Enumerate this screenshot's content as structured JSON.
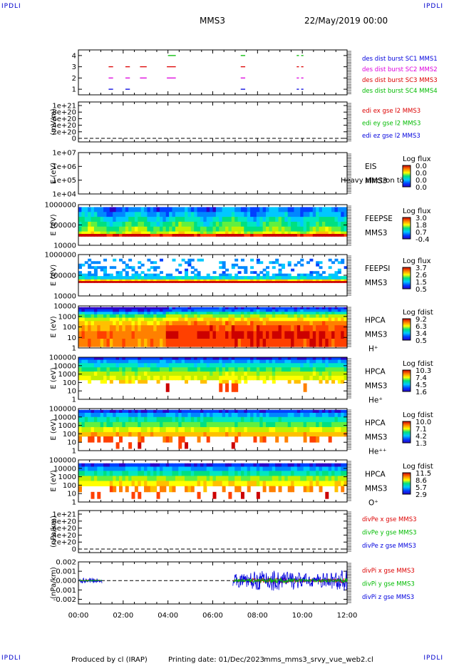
{
  "corner_label": "IPDLI",
  "header": {
    "spacecraft": "MMS3",
    "datetime": "22/May/2019 00:00"
  },
  "footer": {
    "produced_by": "Produced by cl (IRAP)",
    "printing_date": "Printing date: 01/Dec/2023",
    "filename": "mms_mms3_srvy_vue_web2.cl"
  },
  "colors": {
    "blue": "#0000dd",
    "magenta": "#dd00dd",
    "red": "#dd0000",
    "green": "#00bb00",
    "colorbar_stops": [
      "#2a00c8",
      "#0040ff",
      "#00c8ff",
      "#00e080",
      "#ffff00",
      "#ff8000",
      "#cc0000"
    ]
  },
  "chart_data": [
    {
      "type": "scatter",
      "panel": "burst",
      "ylim": [
        0.5,
        4.5
      ],
      "yticks": [
        "1",
        "2",
        "3",
        "4"
      ],
      "legend": [
        {
          "label": "des dist burst SC1 MMS1",
          "color": "#0000dd"
        },
        {
          "label": "des dist burst SC2 MMS2",
          "color": "#dd00dd"
        },
        {
          "label": "des dist burst SC3 MMS3",
          "color": "#dd0000"
        },
        {
          "label": "des dist burst SC4 MMS4",
          "color": "#00bb00"
        }
      ],
      "series": [
        {
          "level": 1,
          "color": "#0000dd",
          "segments": [
            [
              1.35,
              1.55
            ],
            [
              2.1,
              2.3
            ],
            [
              7.25,
              7.45
            ],
            [
              9.75,
              9.85
            ],
            [
              9.95,
              10.05
            ]
          ]
        },
        {
          "level": 2,
          "color": "#dd00dd",
          "segments": [
            [
              1.35,
              1.55
            ],
            [
              2.1,
              2.3
            ],
            [
              2.75,
              3.05
            ],
            [
              3.95,
              4.35
            ],
            [
              7.25,
              7.45
            ],
            [
              9.75,
              9.85
            ],
            [
              9.95,
              10.05
            ]
          ]
        },
        {
          "level": 3,
          "color": "#dd0000",
          "segments": [
            [
              1.35,
              1.55
            ],
            [
              2.1,
              2.3
            ],
            [
              2.75,
              3.05
            ],
            [
              3.95,
              4.35
            ],
            [
              7.25,
              7.45
            ],
            [
              9.75,
              9.85
            ],
            [
              9.95,
              10.05
            ]
          ]
        },
        {
          "level": 4,
          "color": "#00bb00",
          "segments": [
            [
              4.0,
              4.35
            ],
            [
              7.25,
              7.45
            ],
            [
              9.75,
              9.85
            ],
            [
              9.95,
              10.05
            ]
          ]
        }
      ]
    },
    {
      "type": "line",
      "panel": "edi",
      "ylabel": "(mV/m)",
      "yticks": [
        "1e+21",
        "8e+20",
        "6e+20",
        "4e+20",
        "2e+20",
        "0"
      ],
      "legend": [
        {
          "label": "edi ex gse l2 MMS3",
          "color": "#dd0000"
        },
        {
          "label": "edi ey gse l2 MMS3",
          "color": "#00bb00"
        },
        {
          "label": "edi ez gse l2 MMS3",
          "color": "#0000dd"
        }
      ],
      "zero_line": true
    },
    {
      "type": "heatmap",
      "panel": "eis",
      "ylabel": "E (eV)",
      "yticks": [
        "1e+07",
        "1e+06",
        "1e+05",
        "1e+04"
      ],
      "instrument": "EIS",
      "spacecraft": "MMS3",
      "overlay_text": "Heavy electron tö",
      "colorbar": {
        "title": "Log flux",
        "ticks": [
          "0.0",
          "0.0",
          "0.0",
          "0.0"
        ]
      }
    },
    {
      "type": "heatmap",
      "panel": "feepse",
      "ylabel": "E (eV)",
      "yticks": [
        "1000000",
        "100000",
        "10000"
      ],
      "instrument": "FEEPSE",
      "spacecraft": "MMS3",
      "colorbar": {
        "title": "Log flux",
        "ticks": [
          "3.0",
          "1.8",
          "0.7",
          "-0.4"
        ]
      }
    },
    {
      "type": "heatmap",
      "panel": "feepsi",
      "ylabel": "E (eV)",
      "yticks": [
        "1000000",
        "100000",
        "10000"
      ],
      "instrument": "FEEPSI",
      "spacecraft": "MMS3",
      "colorbar": {
        "title": "Log flux",
        "ticks": [
          "3.7",
          "2.6",
          "1.5",
          "0.5"
        ]
      }
    },
    {
      "type": "heatmap",
      "panel": "hpca-h",
      "ylabel": "E (eV)",
      "yticks": [
        "10000",
        "1000",
        "100",
        "10",
        "1"
      ],
      "instrument": "HPCA",
      "spacecraft": "MMS3",
      "species": "H⁺",
      "colorbar": {
        "title": "Log fdist",
        "ticks": [
          "9.2",
          "6.3",
          "3.4",
          "0.5"
        ]
      }
    },
    {
      "type": "heatmap",
      "panel": "hpca-he",
      "ylabel": "E (eV)",
      "yticks": [
        "100000",
        "10000",
        "1000",
        "100",
        "10",
        "1"
      ],
      "instrument": "HPCA",
      "spacecraft": "MMS3",
      "species": "He⁺",
      "colorbar": {
        "title": "Log fdist",
        "ticks": [
          "10.3",
          "7.4",
          "4.5",
          "1.6"
        ]
      }
    },
    {
      "type": "heatmap",
      "panel": "hpca-hepp",
      "ylabel": "E (eV)",
      "yticks": [
        "100000",
        "10000",
        "1000",
        "100",
        "10",
        "1"
      ],
      "instrument": "HPCA",
      "spacecraft": "MMS3",
      "species": "He⁺⁺",
      "colorbar": {
        "title": "Log fdist",
        "ticks": [
          "10.0",
          "7.1",
          "4.2",
          "1.3"
        ]
      }
    },
    {
      "type": "heatmap",
      "panel": "hpca-o",
      "ylabel": "E (eV)",
      "yticks": [
        "100000",
        "10000",
        "1000",
        "100",
        "10",
        "1"
      ],
      "instrument": "HPCA",
      "spacecraft": "MMS3",
      "species": "O⁺",
      "colorbar": {
        "title": "Log fdist",
        "ticks": [
          "11.5",
          "8.6",
          "5.7",
          "2.9"
        ]
      }
    },
    {
      "type": "line",
      "panel": "divpe",
      "ylabel": "(nPa/km)",
      "yticks": [
        "1e+21",
        "8e+20",
        "6e+20",
        "4e+20",
        "2e+20",
        "0"
      ],
      "legend": [
        {
          "label": "divPe x gse MMS3",
          "color": "#dd0000"
        },
        {
          "label": "divPe y gse MMS3",
          "color": "#00bb00"
        },
        {
          "label": "divPe z gse MMS3",
          "color": "#0000dd"
        }
      ],
      "zero_line": true
    },
    {
      "type": "line",
      "panel": "divpi",
      "ylabel": "(nPa/km)",
      "ylim": [
        -0.0025,
        0.002
      ],
      "yticks": [
        "0.002",
        "0.001",
        "0.000",
        "-0.001",
        "-0.002"
      ],
      "legend": [
        {
          "label": "divPi x gse MMS3",
          "color": "#dd0000"
        },
        {
          "label": "divPi y gse MMS3",
          "color": "#00bb00"
        },
        {
          "label": "divPi z gse MMS3",
          "color": "#0000dd"
        }
      ],
      "data_intervals_hours": [
        [
          0.05,
          1.05
        ],
        [
          6.9,
          12.0
        ]
      ],
      "zero_line": true
    }
  ],
  "x_axis": {
    "range_hours": [
      0,
      12
    ],
    "tick_labels": [
      "00:00",
      "02:00",
      "04:00",
      "06:00",
      "08:00",
      "10:00",
      "12:00"
    ],
    "tick_hours": [
      0,
      2,
      4,
      6,
      8,
      10,
      12
    ]
  }
}
